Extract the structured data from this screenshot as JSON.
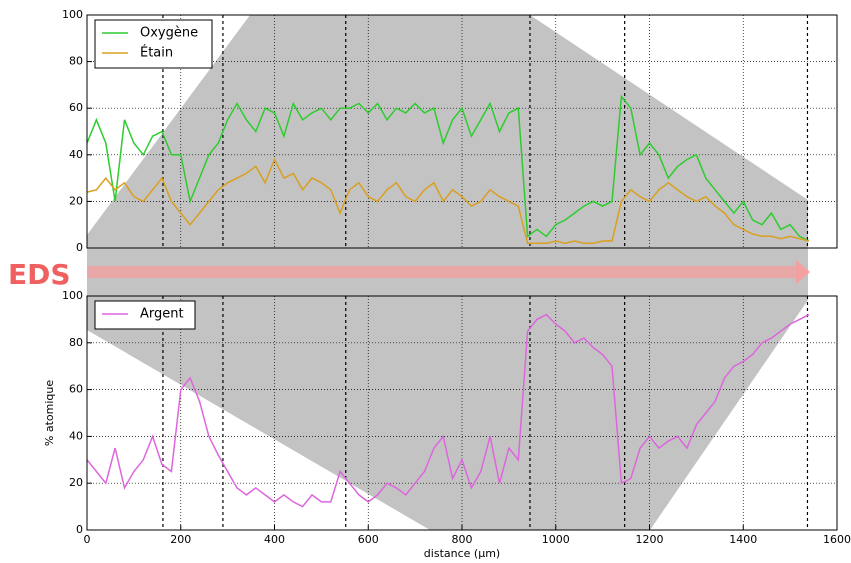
{
  "chart_data": [
    {
      "type": "line",
      "annotation": "EDS",
      "x": [
        0,
        20,
        40,
        60,
        80,
        100,
        120,
        140,
        160,
        180,
        200,
        220,
        240,
        260,
        280,
        300,
        320,
        340,
        360,
        380,
        400,
        420,
        440,
        460,
        480,
        500,
        520,
        540,
        560,
        580,
        600,
        620,
        640,
        660,
        680,
        700,
        720,
        740,
        760,
        780,
        800,
        820,
        840,
        860,
        880,
        900,
        920,
        940,
        960,
        980,
        1000,
        1020,
        1040,
        1060,
        1080,
        1100,
        1120,
        1140,
        1160,
        1180,
        1200,
        1220,
        1240,
        1260,
        1280,
        1300,
        1320,
        1340,
        1360,
        1380,
        1400,
        1420,
        1440,
        1460,
        1480,
        1500,
        1520,
        1540
      ],
      "series": [
        {
          "name": "Oxygène",
          "color": "#2ecc2e",
          "values": [
            45,
            55,
            45,
            20,
            55,
            45,
            40,
            48,
            50,
            40,
            40,
            20,
            30,
            40,
            45,
            55,
            62,
            55,
            50,
            60,
            58,
            48,
            62,
            55,
            58,
            60,
            55,
            60,
            60,
            62,
            58,
            62,
            55,
            60,
            58,
            62,
            58,
            60,
            45,
            55,
            60,
            48,
            55,
            62,
            50,
            58,
            60,
            5,
            8,
            5,
            10,
            12,
            15,
            18,
            20,
            18,
            20,
            65,
            60,
            40,
            45,
            40,
            30,
            35,
            38,
            40,
            30,
            25,
            20,
            15,
            20,
            12,
            10,
            15,
            8,
            10,
            5,
            3
          ]
        },
        {
          "name": "Étain",
          "color": "#d9a020",
          "values": [
            24,
            25,
            30,
            25,
            28,
            22,
            20,
            25,
            30,
            20,
            15,
            10,
            15,
            20,
            25,
            28,
            30,
            32,
            35,
            28,
            38,
            30,
            32,
            25,
            30,
            28,
            25,
            15,
            25,
            28,
            22,
            20,
            25,
            28,
            22,
            20,
            25,
            28,
            20,
            25,
            22,
            18,
            20,
            25,
            22,
            20,
            18,
            2,
            2,
            2,
            3,
            2,
            3,
            2,
            2,
            3,
            3,
            20,
            25,
            22,
            20,
            25,
            28,
            25,
            22,
            20,
            22,
            18,
            15,
            10,
            8,
            6,
            5,
            5,
            4,
            5,
            4,
            3
          ]
        }
      ],
      "vlines": [
        162,
        290,
        552,
        945,
        1147,
        1537
      ],
      "xlim": [
        0,
        1600
      ],
      "ylim": [
        0,
        100
      ],
      "yticks": [
        0,
        20,
        40,
        60,
        80,
        100
      ],
      "grid": true
    },
    {
      "type": "line",
      "ylabel": "% atomique",
      "xlabel": "distance (µm)",
      "x": [
        0,
        20,
        40,
        60,
        80,
        100,
        120,
        140,
        160,
        180,
        200,
        220,
        240,
        260,
        280,
        300,
        320,
        340,
        360,
        380,
        400,
        420,
        440,
        460,
        480,
        500,
        520,
        540,
        560,
        580,
        600,
        620,
        640,
        660,
        680,
        700,
        720,
        740,
        760,
        780,
        800,
        820,
        840,
        860,
        880,
        900,
        920,
        940,
        960,
        980,
        1000,
        1020,
        1040,
        1060,
        1080,
        1100,
        1120,
        1140,
        1160,
        1180,
        1200,
        1220,
        1240,
        1260,
        1280,
        1300,
        1320,
        1340,
        1360,
        1380,
        1400,
        1420,
        1440,
        1460,
        1480,
        1500,
        1520,
        1540
      ],
      "series": [
        {
          "name": "Argent",
          "color": "#dd66dd",
          "values": [
            30,
            25,
            20,
            35,
            18,
            25,
            30,
            40,
            28,
            25,
            60,
            65,
            55,
            40,
            32,
            25,
            18,
            15,
            18,
            15,
            12,
            15,
            12,
            10,
            15,
            12,
            12,
            25,
            20,
            15,
            12,
            15,
            20,
            18,
            15,
            20,
            25,
            35,
            40,
            22,
            30,
            18,
            25,
            40,
            20,
            35,
            30,
            85,
            90,
            92,
            88,
            85,
            80,
            82,
            78,
            75,
            70,
            20,
            22,
            35,
            40,
            35,
            38,
            40,
            35,
            45,
            50,
            55,
            65,
            70,
            72,
            75,
            80,
            82,
            85,
            88,
            90,
            92
          ]
        }
      ],
      "xlim": [
        0,
        1600
      ],
      "ylim": [
        0,
        100
      ],
      "xticks": [
        0,
        200,
        400,
        600,
        800,
        1000,
        1200,
        1400,
        1600
      ],
      "yticks": [
        0,
        20,
        40,
        60,
        80,
        100
      ],
      "grid": true
    }
  ]
}
